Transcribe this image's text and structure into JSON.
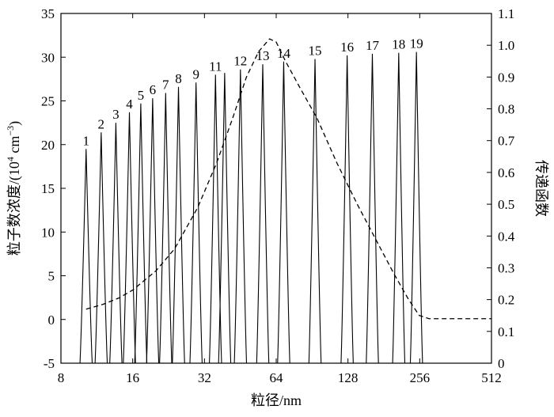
{
  "chart_data": {
    "type": "line",
    "xlabel": "粒径/nm",
    "ylabel_prefix": "粒子数浓度/(10",
    "ylabel_exp1": "4",
    "ylabel_mid": " cm",
    "ylabel_exp2": "−3",
    "ylabel_suffix": ")",
    "y2label": "传递函数",
    "x_scale": "log2",
    "xlim": [
      8,
      512
    ],
    "ylim": [
      -5,
      35
    ],
    "y2lim": [
      0,
      1.1
    ],
    "x_ticks": [
      8,
      16,
      32,
      64,
      128,
      256,
      512
    ],
    "y_ticks": [
      -5,
      0,
      5,
      10,
      15,
      20,
      25,
      30,
      35
    ],
    "y2_ticks": [
      "0",
      "0.1",
      "0.2",
      "0.3",
      "0.4",
      "0.5",
      "0.6",
      "0.7",
      "0.8",
      "0.9",
      "1.0",
      "1.1"
    ],
    "grid": false,
    "series": [
      {
        "style": "solid",
        "axis": "left",
        "peaks": [
          {
            "label": "1",
            "x": 10.2,
            "peak": 19.5
          },
          {
            "label": "2",
            "x": 11.8,
            "peak": 21.4
          },
          {
            "label": "3",
            "x": 13.6,
            "peak": 22.5
          },
          {
            "label": "4",
            "x": 15.5,
            "peak": 23.7
          },
          {
            "label": "5",
            "x": 17.3,
            "peak": 24.7
          },
          {
            "label": "6",
            "x": 19.4,
            "peak": 25.3
          },
          {
            "label": "7",
            "x": 22.0,
            "peak": 25.9
          },
          {
            "label": "8",
            "x": 24.9,
            "peak": 26.6
          },
          {
            "label": "9",
            "x": 29.5,
            "peak": 27.1
          },
          {
            "label": "11",
            "x": 35.6,
            "peak": 28.0
          },
          {
            "label": "12",
            "x": 45.3,
            "peak": 28.6
          },
          {
            "label": "13",
            "x": 56.2,
            "peak": 29.2
          },
          {
            "label": "14",
            "x": 68.8,
            "peak": 29.5
          },
          {
            "label": "15",
            "x": 93.1,
            "peak": 29.8
          },
          {
            "label": "16",
            "x": 127,
            "peak": 30.2
          },
          {
            "label": "17",
            "x": 162,
            "peak": 30.4
          },
          {
            "label": "18",
            "x": 209,
            "peak": 30.5
          },
          {
            "label": "19",
            "x": 248,
            "peak": 30.6
          }
        ],
        "unlabeled_peaks": [
          {
            "x": 38.9,
            "peak": 28.2
          }
        ]
      },
      {
        "style": "dashed",
        "axis": "right",
        "x": [
          10.2,
          12,
          14,
          16,
          20,
          24,
          30,
          36,
          42,
          48,
          54,
          60,
          64,
          70,
          80,
          95,
          115,
          140,
          170,
          200,
          230,
          255,
          280,
          330,
          400,
          512
        ],
        "y": [
          0.17,
          0.185,
          0.205,
          0.23,
          0.29,
          0.36,
          0.49,
          0.63,
          0.77,
          0.9,
          0.98,
          1.02,
          1.01,
          0.95,
          0.87,
          0.77,
          0.63,
          0.5,
          0.38,
          0.28,
          0.2,
          0.15,
          0.14,
          0.14,
          0.14,
          0.14
        ]
      }
    ]
  }
}
